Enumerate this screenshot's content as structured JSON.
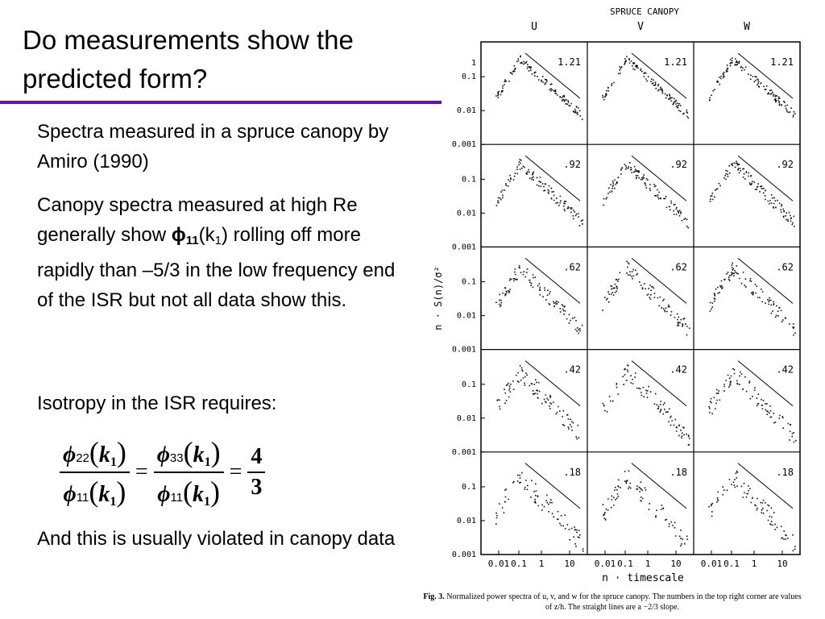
{
  "slide": {
    "title": "Do measurements show the predicted form?",
    "para1": "Spectra measured in a spruce canopy by Amiro (1990)",
    "para2": {
      "before": "Canopy spectra measured at high Re generally show ",
      "phi": "ϕ",
      "phisub": "11",
      "argopen": "(k",
      "argsub": "1",
      "argclose": ")",
      "after": " rolling off more rapidly than –5/3 in the low frequency end of the ISR but not all data show this."
    },
    "para3": "Isotropy in the ISR requires:",
    "equation": {
      "phi": "ϕ",
      "open": "(",
      "close": ")",
      "k": "k",
      "ksub": "1",
      "eq": "=",
      "fractions": [
        {
          "num": "22",
          "den": "11"
        },
        {
          "num": "33",
          "den": "11"
        }
      ],
      "result": {
        "num": "4",
        "den": "3"
      }
    },
    "para4": "And this is usually violated in canopy data"
  },
  "figure": {
    "title": "SPRUCE CANOPY",
    "columns": [
      "U",
      "V",
      "W"
    ],
    "rows": [
      "1.21",
      ".92",
      ".62",
      ".42",
      ".18"
    ],
    "ytop": "1",
    "yticks": [
      "0.1",
      "0.01",
      "0.001"
    ],
    "xticks": [
      "0.01",
      "0.1",
      "1",
      "10"
    ],
    "ylabel": "n · S(n)/σ²",
    "xlabel": "n · timescale",
    "caption_label": "Fig. 3.",
    "caption": "Normalized power spectra of u, v, and w for the spruce canopy. The numbers in the top right corner are values of z/h. The straight lines are a −2/3 slope."
  }
}
